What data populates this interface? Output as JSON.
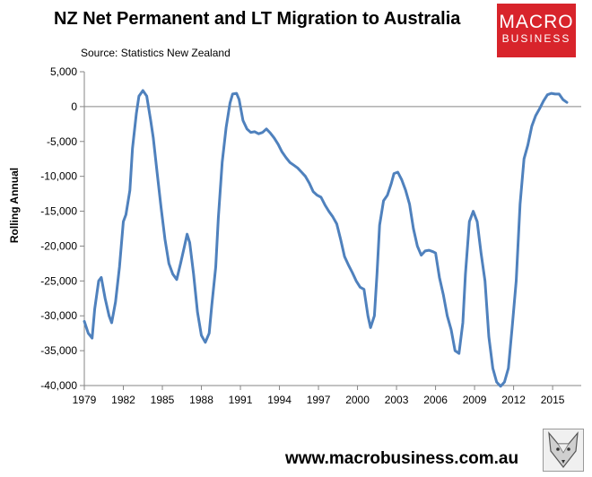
{
  "title": "NZ Net Permanent and LT Migration to Australia",
  "source": "Source: Statistics New Zealand",
  "logo": {
    "line1": "MACRO",
    "line2": "BUSINESS",
    "bg_color": "#d8242b"
  },
  "footer_url": "www.macrobusiness.com.au",
  "fox_icon": "fox-head-icon",
  "chart_data": {
    "type": "line",
    "title": "NZ Net Permanent and LT Migration to Australia",
    "ylabel": "Rolling Annual",
    "xlabel": "",
    "ylim": [
      -40000,
      5000
    ],
    "xlim": [
      1979,
      2017.2
    ],
    "grid": false,
    "legend": "none",
    "line_color": "#4f81bd",
    "y_ticks": [
      {
        "value": 5000,
        "label": "5,000"
      },
      {
        "value": 0,
        "label": "0"
      },
      {
        "value": -5000,
        "label": "-5,000"
      },
      {
        "value": -10000,
        "label": "-10,000"
      },
      {
        "value": -15000,
        "label": "-15,000"
      },
      {
        "value": -20000,
        "label": "-20,000"
      },
      {
        "value": -25000,
        "label": "-25,000"
      },
      {
        "value": -30000,
        "label": "-30,000"
      },
      {
        "value": -35000,
        "label": "-35,000"
      },
      {
        "value": -40000,
        "label": "-40,000"
      }
    ],
    "x_ticks": [
      {
        "value": 1979,
        "label": "1979"
      },
      {
        "value": 1982,
        "label": "1982"
      },
      {
        "value": 1985,
        "label": "1985"
      },
      {
        "value": 1988,
        "label": "1988"
      },
      {
        "value": 1991,
        "label": "1991"
      },
      {
        "value": 1994,
        "label": "1994"
      },
      {
        "value": 1997,
        "label": "1997"
      },
      {
        "value": 2000,
        "label": "2000"
      },
      {
        "value": 2003,
        "label": "2003"
      },
      {
        "value": 2006,
        "label": "2006"
      },
      {
        "value": 2009,
        "label": "2009"
      },
      {
        "value": 2012,
        "label": "2012"
      },
      {
        "value": 2015,
        "label": "2015"
      }
    ],
    "series": [
      {
        "points": [
          [
            1979.0,
            -30800
          ],
          [
            1979.3,
            -32500
          ],
          [
            1979.6,
            -33200
          ],
          [
            1979.8,
            -29000
          ],
          [
            1980.1,
            -25000
          ],
          [
            1980.3,
            -24500
          ],
          [
            1980.6,
            -27500
          ],
          [
            1980.9,
            -30000
          ],
          [
            1981.1,
            -31000
          ],
          [
            1981.4,
            -28000
          ],
          [
            1981.7,
            -23000
          ],
          [
            1982.0,
            -16500
          ],
          [
            1982.2,
            -15500
          ],
          [
            1982.5,
            -12000
          ],
          [
            1982.7,
            -6000
          ],
          [
            1983.0,
            -1000
          ],
          [
            1983.2,
            1500
          ],
          [
            1983.5,
            2300
          ],
          [
            1983.8,
            1500
          ],
          [
            1984.1,
            -2000
          ],
          [
            1984.3,
            -4500
          ],
          [
            1984.6,
            -9500
          ],
          [
            1984.9,
            -14500
          ],
          [
            1985.2,
            -19000
          ],
          [
            1985.5,
            -22500
          ],
          [
            1985.8,
            -24000
          ],
          [
            1986.1,
            -24800
          ],
          [
            1986.4,
            -22500
          ],
          [
            1986.7,
            -20000
          ],
          [
            1986.9,
            -18300
          ],
          [
            1987.1,
            -19500
          ],
          [
            1987.4,
            -24000
          ],
          [
            1987.7,
            -29500
          ],
          [
            1988.0,
            -32800
          ],
          [
            1988.3,
            -33800
          ],
          [
            1988.6,
            -32500
          ],
          [
            1988.8,
            -28500
          ],
          [
            1989.1,
            -23000
          ],
          [
            1989.3,
            -16000
          ],
          [
            1989.6,
            -8000
          ],
          [
            1989.9,
            -3000
          ],
          [
            1990.2,
            500
          ],
          [
            1990.4,
            1800
          ],
          [
            1990.7,
            1900
          ],
          [
            1990.9,
            1000
          ],
          [
            1991.2,
            -2000
          ],
          [
            1991.5,
            -3200
          ],
          [
            1991.8,
            -3700
          ],
          [
            1992.1,
            -3600
          ],
          [
            1992.4,
            -3900
          ],
          [
            1992.7,
            -3700
          ],
          [
            1993.0,
            -3200
          ],
          [
            1993.3,
            -3800
          ],
          [
            1993.6,
            -4500
          ],
          [
            1993.9,
            -5400
          ],
          [
            1994.2,
            -6500
          ],
          [
            1994.5,
            -7300
          ],
          [
            1994.8,
            -8000
          ],
          [
            1995.1,
            -8400
          ],
          [
            1995.4,
            -8800
          ],
          [
            1995.7,
            -9400
          ],
          [
            1996.0,
            -10000
          ],
          [
            1996.3,
            -11000
          ],
          [
            1996.6,
            -12200
          ],
          [
            1996.9,
            -12700
          ],
          [
            1997.2,
            -13000
          ],
          [
            1997.5,
            -14100
          ],
          [
            1997.8,
            -15000
          ],
          [
            1998.1,
            -15800
          ],
          [
            1998.4,
            -16800
          ],
          [
            1998.7,
            -19000
          ],
          [
            1999.0,
            -21500
          ],
          [
            1999.3,
            -22700
          ],
          [
            1999.6,
            -23800
          ],
          [
            1999.9,
            -25000
          ],
          [
            2000.2,
            -25900
          ],
          [
            2000.5,
            -26200
          ],
          [
            2000.8,
            -30000
          ],
          [
            2001.0,
            -31700
          ],
          [
            2001.3,
            -30000
          ],
          [
            2001.5,
            -24000
          ],
          [
            2001.7,
            -17000
          ],
          [
            2002.0,
            -13500
          ],
          [
            2002.3,
            -12700
          ],
          [
            2002.6,
            -11000
          ],
          [
            2002.8,
            -9600
          ],
          [
            2003.1,
            -9400
          ],
          [
            2003.4,
            -10500
          ],
          [
            2003.7,
            -12000
          ],
          [
            2004.0,
            -14000
          ],
          [
            2004.3,
            -17500
          ],
          [
            2004.6,
            -20000
          ],
          [
            2004.9,
            -21300
          ],
          [
            2005.2,
            -20700
          ],
          [
            2005.5,
            -20600
          ],
          [
            2005.8,
            -20800
          ],
          [
            2006.0,
            -21000
          ],
          [
            2006.3,
            -24500
          ],
          [
            2006.6,
            -27000
          ],
          [
            2006.9,
            -30000
          ],
          [
            2007.2,
            -32000
          ],
          [
            2007.5,
            -35000
          ],
          [
            2007.8,
            -35400
          ],
          [
            2008.1,
            -31000
          ],
          [
            2008.3,
            -24000
          ],
          [
            2008.6,
            -16500
          ],
          [
            2008.9,
            -15000
          ],
          [
            2009.2,
            -16500
          ],
          [
            2009.5,
            -21000
          ],
          [
            2009.8,
            -25000
          ],
          [
            2010.1,
            -33000
          ],
          [
            2010.4,
            -37500
          ],
          [
            2010.7,
            -39500
          ],
          [
            2011.0,
            -40100
          ],
          [
            2011.3,
            -39500
          ],
          [
            2011.6,
            -37500
          ],
          [
            2011.9,
            -31500
          ],
          [
            2012.2,
            -25000
          ],
          [
            2012.5,
            -14000
          ],
          [
            2012.8,
            -7500
          ],
          [
            2013.1,
            -5500
          ],
          [
            2013.4,
            -2800
          ],
          [
            2013.7,
            -1300
          ],
          [
            2014.0,
            -300
          ],
          [
            2014.3,
            800
          ],
          [
            2014.6,
            1700
          ],
          [
            2014.9,
            1900
          ],
          [
            2015.2,
            1800
          ],
          [
            2015.5,
            1800
          ],
          [
            2015.8,
            1000
          ],
          [
            2016.1,
            600
          ]
        ]
      }
    ]
  }
}
